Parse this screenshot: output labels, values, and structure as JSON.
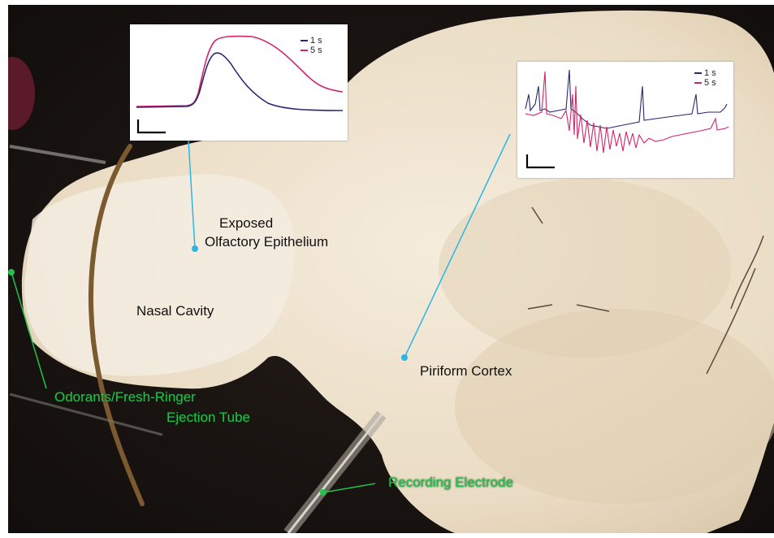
{
  "labels": {
    "epithelium_line1": "Exposed",
    "epithelium_line2": "Olfactory Epithelium",
    "nasal_cavity": "Nasal Cavity",
    "piriform_cortex": "Piriform Cortex",
    "ejection_line1": "Odorants/Fresh-Ringer",
    "ejection_line2": "Ejection Tube",
    "electrode": "Recording Electrode"
  },
  "insets": {
    "left": {
      "legend": [
        "1 s",
        "5 s"
      ]
    },
    "right": {
      "legend": [
        "1 s",
        "5 s"
      ]
    }
  },
  "colors": {
    "trace_1s": "#2a2673",
    "trace_5s": "#d4246c",
    "pointer_blue": "#2bb6e6",
    "pointer_green": "#22c24a",
    "label_green": "#22c24a",
    "tissue": "#efe4cf",
    "background": "#1a1513"
  }
}
